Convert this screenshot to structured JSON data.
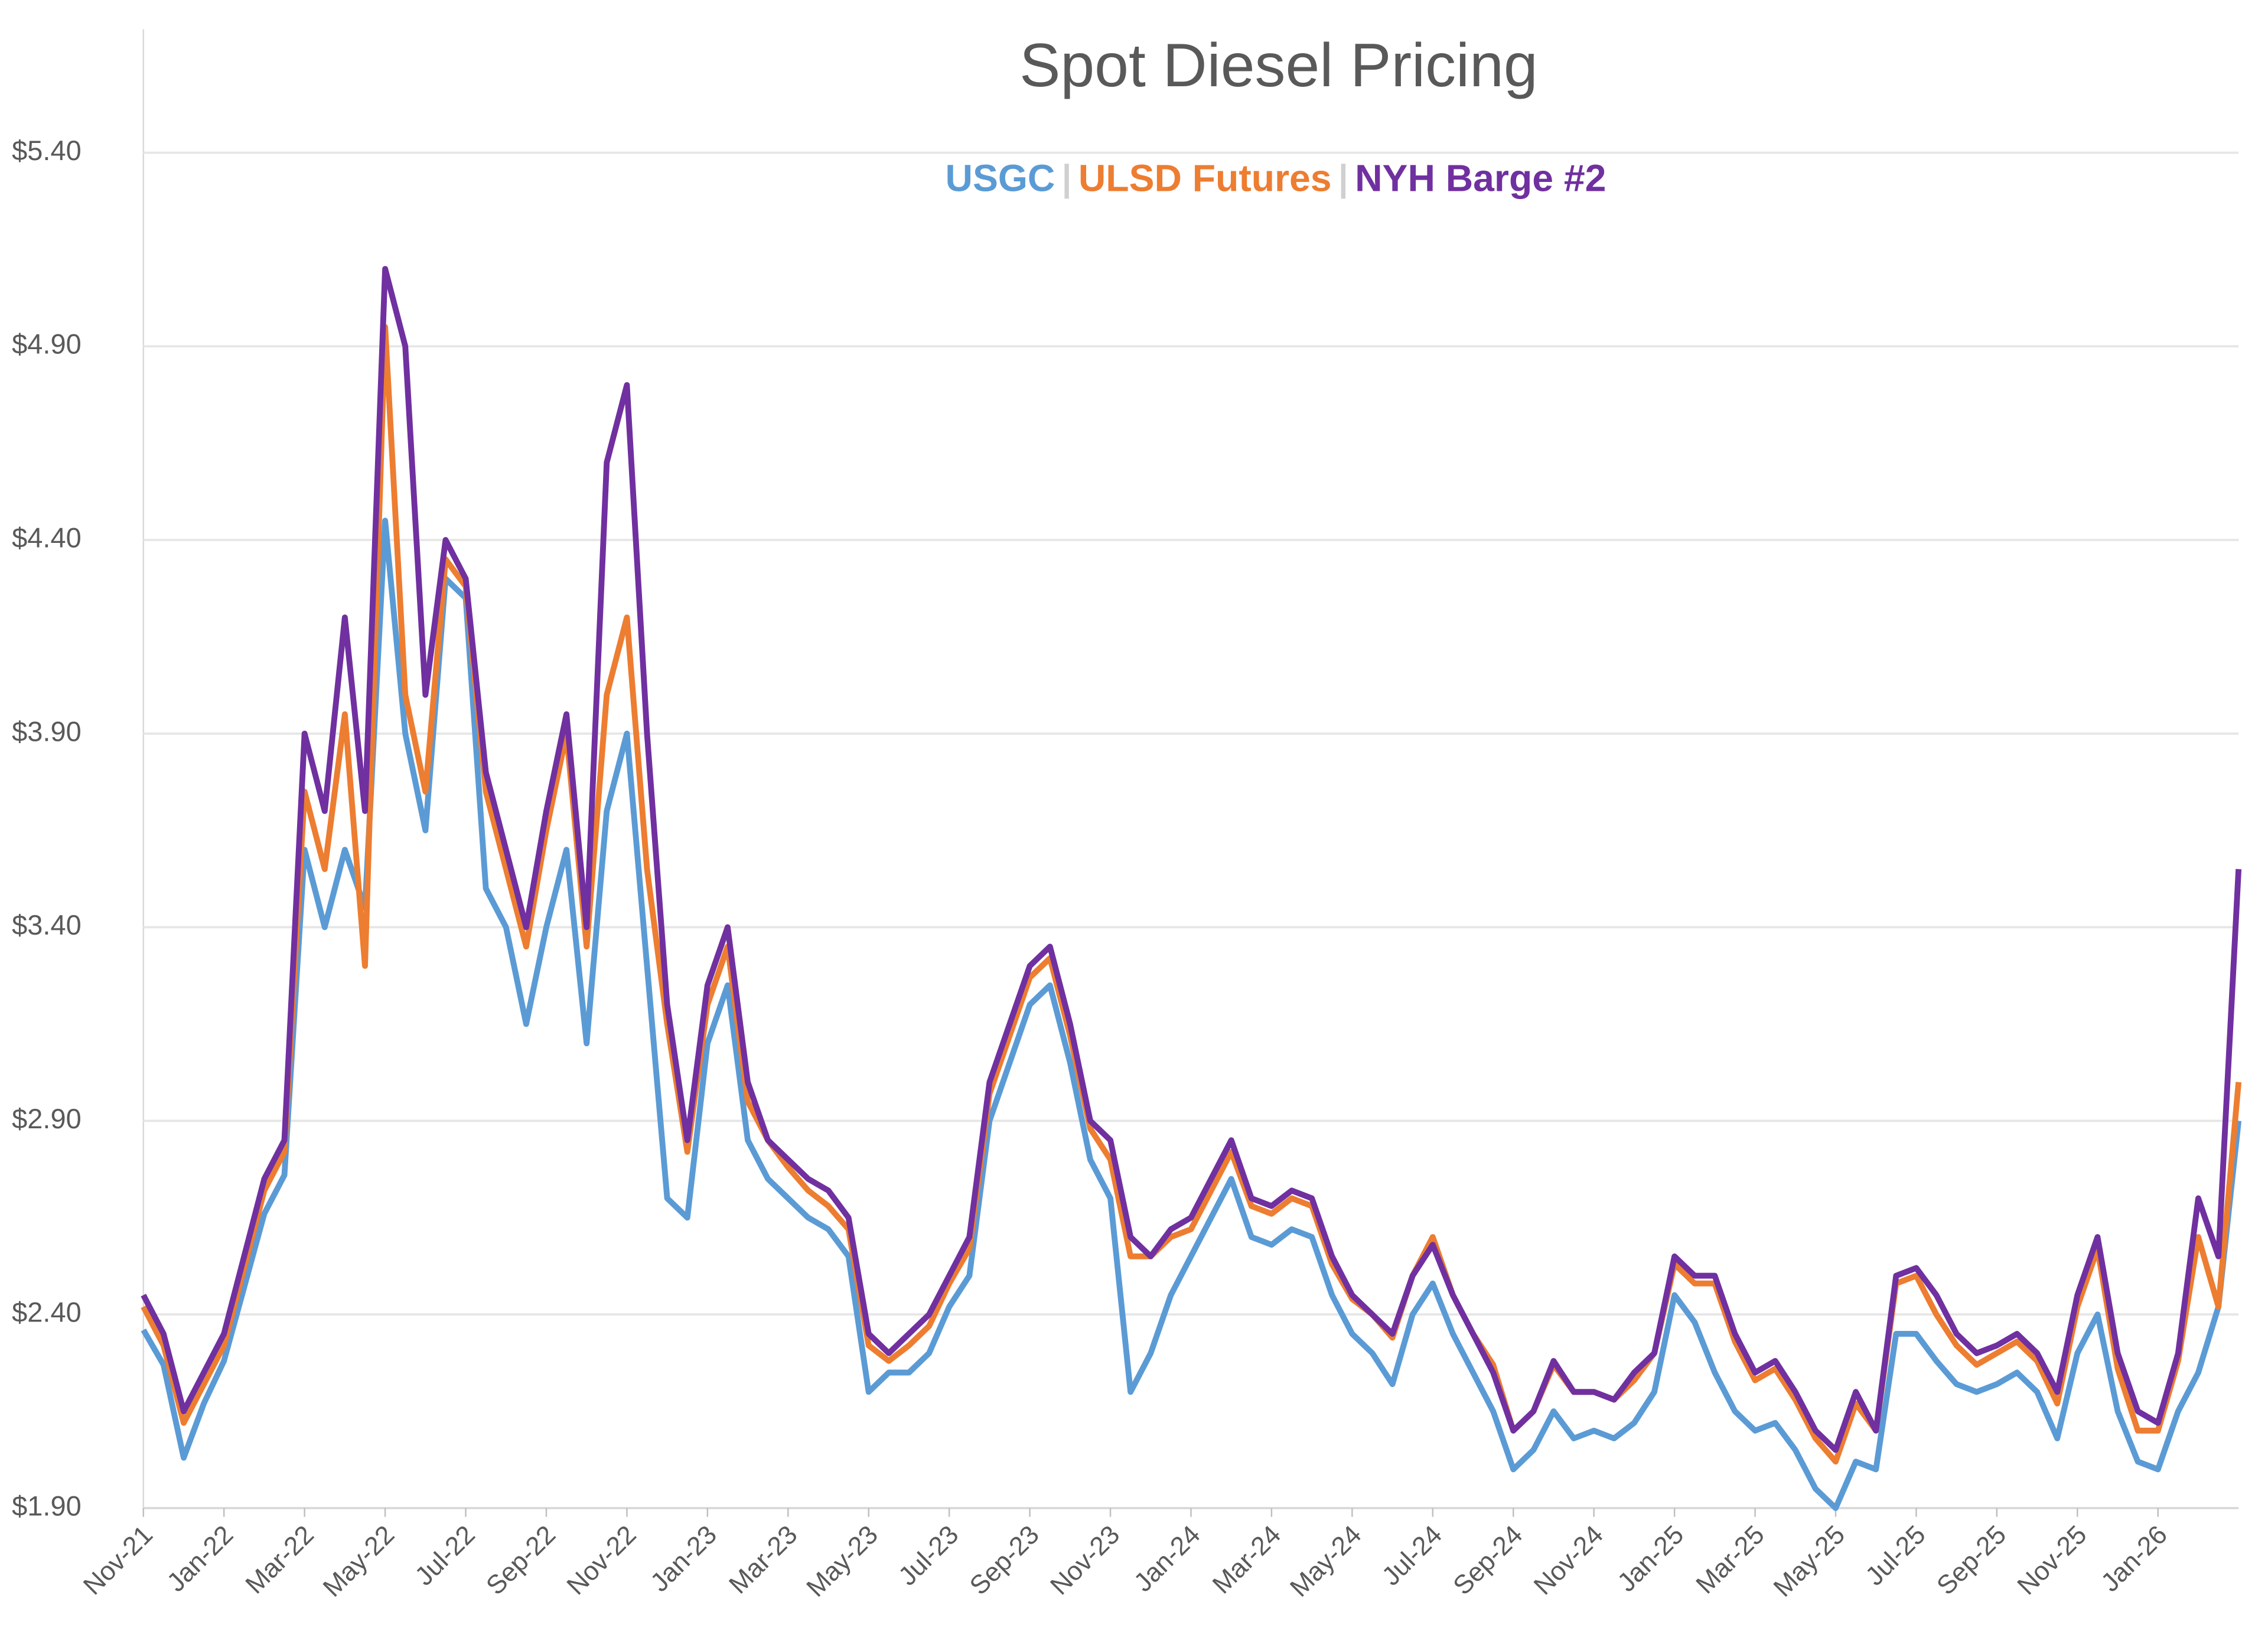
{
  "chart_data": {
    "type": "line",
    "title": "Spot Diesel Pricing",
    "categories": [
      "Nov-21",
      null,
      null,
      null,
      "Jan-22",
      null,
      null,
      null,
      "Mar-22",
      null,
      null,
      null,
      "May-22",
      null,
      null,
      null,
      "Jul-22",
      null,
      null,
      null,
      "Sep-22",
      null,
      null,
      null,
      "Nov-22",
      null,
      null,
      null,
      "Jan-23",
      null,
      null,
      null,
      "Mar-23",
      null,
      null,
      null,
      "May-23",
      null,
      null,
      null,
      "Jul-23",
      null,
      null,
      null,
      "Sep-23",
      null,
      null,
      null,
      "Nov-23",
      null,
      null,
      null,
      "Jan-24",
      null,
      null,
      null,
      "Mar-24",
      null,
      null,
      null,
      "May-24",
      null,
      null,
      null,
      "Jul-24",
      null,
      null,
      null,
      "Sep-24",
      null,
      null,
      null,
      "Nov-24",
      null,
      null,
      null,
      "Jan-25",
      null,
      null,
      null,
      "Mar-25",
      null,
      null,
      null,
      "May-25",
      null,
      null,
      null,
      "Jul-25",
      null,
      null,
      null,
      "Sep-25",
      null,
      null,
      null,
      "Nov-25",
      null,
      null,
      null,
      "Jan-26",
      null,
      null,
      null,
      null
    ],
    "series": [
      {
        "name": "USGC",
        "color": "#5b9bd5",
        "values": [
          2.36,
          2.27,
          2.03,
          2.17,
          2.28,
          2.47,
          2.66,
          2.76,
          3.6,
          3.4,
          3.6,
          3.45,
          4.45,
          3.9,
          3.65,
          4.3,
          4.25,
          3.5,
          3.4,
          3.15,
          3.4,
          3.6,
          3.1,
          3.7,
          3.9,
          3.3,
          2.7,
          2.65,
          3.1,
          3.25,
          2.85,
          2.75,
          2.7,
          2.65,
          2.62,
          2.55,
          2.2,
          2.25,
          2.25,
          2.3,
          2.42,
          2.5,
          2.9,
          3.05,
          3.2,
          3.25,
          3.05,
          2.8,
          2.7,
          2.2,
          2.3,
          2.45,
          2.55,
          2.65,
          2.75,
          2.6,
          2.58,
          2.62,
          2.6,
          2.45,
          2.35,
          2.3,
          2.22,
          2.4,
          2.48,
          2.35,
          2.25,
          2.15,
          2.0,
          2.05,
          2.15,
          2.08,
          2.1,
          2.08,
          2.12,
          2.2,
          2.45,
          2.38,
          2.25,
          2.15,
          2.1,
          2.12,
          2.05,
          1.95,
          1.9,
          2.02,
          2.0,
          2.35,
          2.35,
          2.28,
          2.22,
          2.2,
          2.22,
          2.25,
          2.2,
          2.08,
          2.3,
          2.4,
          2.15,
          2.02,
          2.0,
          2.15,
          2.25,
          2.42,
          2.9
        ]
      },
      {
        "name": "ULSD Futures",
        "color": "#ed7d31",
        "values": [
          2.42,
          2.32,
          2.12,
          2.22,
          2.32,
          2.52,
          2.72,
          2.82,
          3.75,
          3.55,
          3.95,
          3.3,
          4.95,
          4.0,
          3.75,
          4.35,
          4.28,
          3.75,
          3.55,
          3.35,
          3.65,
          3.9,
          3.35,
          4.0,
          4.2,
          3.55,
          3.15,
          2.82,
          3.2,
          3.35,
          2.95,
          2.85,
          2.78,
          2.72,
          2.68,
          2.62,
          2.32,
          2.28,
          2.32,
          2.37,
          2.48,
          2.57,
          2.97,
          3.12,
          3.27,
          3.32,
          3.12,
          2.88,
          2.8,
          2.55,
          2.55,
          2.6,
          2.62,
          2.72,
          2.82,
          2.68,
          2.66,
          2.7,
          2.68,
          2.53,
          2.44,
          2.4,
          2.34,
          2.5,
          2.6,
          2.45,
          2.35,
          2.27,
          2.1,
          2.15,
          2.27,
          2.2,
          2.2,
          2.18,
          2.23,
          2.3,
          2.53,
          2.48,
          2.48,
          2.33,
          2.23,
          2.26,
          2.18,
          2.08,
          2.02,
          2.17,
          2.1,
          2.48,
          2.5,
          2.4,
          2.32,
          2.27,
          2.3,
          2.33,
          2.28,
          2.17,
          2.42,
          2.57,
          2.26,
          2.1,
          2.1,
          2.28,
          2.6,
          2.42,
          3.0
        ]
      },
      {
        "name": "NYH Barge #2",
        "color": "#7030a0",
        "values": [
          2.45,
          2.35,
          2.15,
          2.25,
          2.35,
          2.55,
          2.75,
          2.85,
          3.9,
          3.7,
          4.2,
          3.7,
          5.1,
          4.9,
          4.0,
          4.4,
          4.3,
          3.8,
          3.6,
          3.4,
          3.7,
          3.95,
          3.4,
          4.6,
          4.8,
          3.9,
          3.2,
          2.85,
          3.25,
          3.4,
          3.0,
          2.85,
          2.8,
          2.75,
          2.72,
          2.65,
          2.35,
          2.3,
          2.35,
          2.4,
          2.5,
          2.6,
          3.0,
          3.15,
          3.3,
          3.35,
          3.15,
          2.9,
          2.85,
          2.6,
          2.55,
          2.62,
          2.65,
          2.75,
          2.85,
          2.7,
          2.68,
          2.72,
          2.7,
          2.55,
          2.45,
          2.4,
          2.35,
          2.5,
          2.58,
          2.45,
          2.35,
          2.25,
          2.1,
          2.15,
          2.28,
          2.2,
          2.2,
          2.18,
          2.25,
          2.3,
          2.55,
          2.5,
          2.5,
          2.35,
          2.25,
          2.28,
          2.2,
          2.1,
          2.05,
          2.2,
          2.1,
          2.5,
          2.52,
          2.45,
          2.35,
          2.3,
          2.32,
          2.35,
          2.3,
          2.2,
          2.45,
          2.6,
          2.3,
          2.15,
          2.12,
          2.3,
          2.7,
          2.55,
          3.55
        ]
      }
    ],
    "ylim": [
      1.9,
      5.7
    ],
    "yticks": [
      {
        "value": 1.9,
        "label": "$1.90"
      },
      {
        "value": 2.4,
        "label": "$2.40"
      },
      {
        "value": 2.9,
        "label": "$2.90"
      },
      {
        "value": 3.4,
        "label": "$3.40"
      },
      {
        "value": 3.9,
        "label": "$3.90"
      },
      {
        "value": 4.4,
        "label": "$4.40"
      },
      {
        "value": 4.9,
        "label": "$4.90"
      },
      {
        "value": 5.4,
        "label": "$5.40"
      }
    ],
    "grid": true,
    "legend": "top"
  }
}
